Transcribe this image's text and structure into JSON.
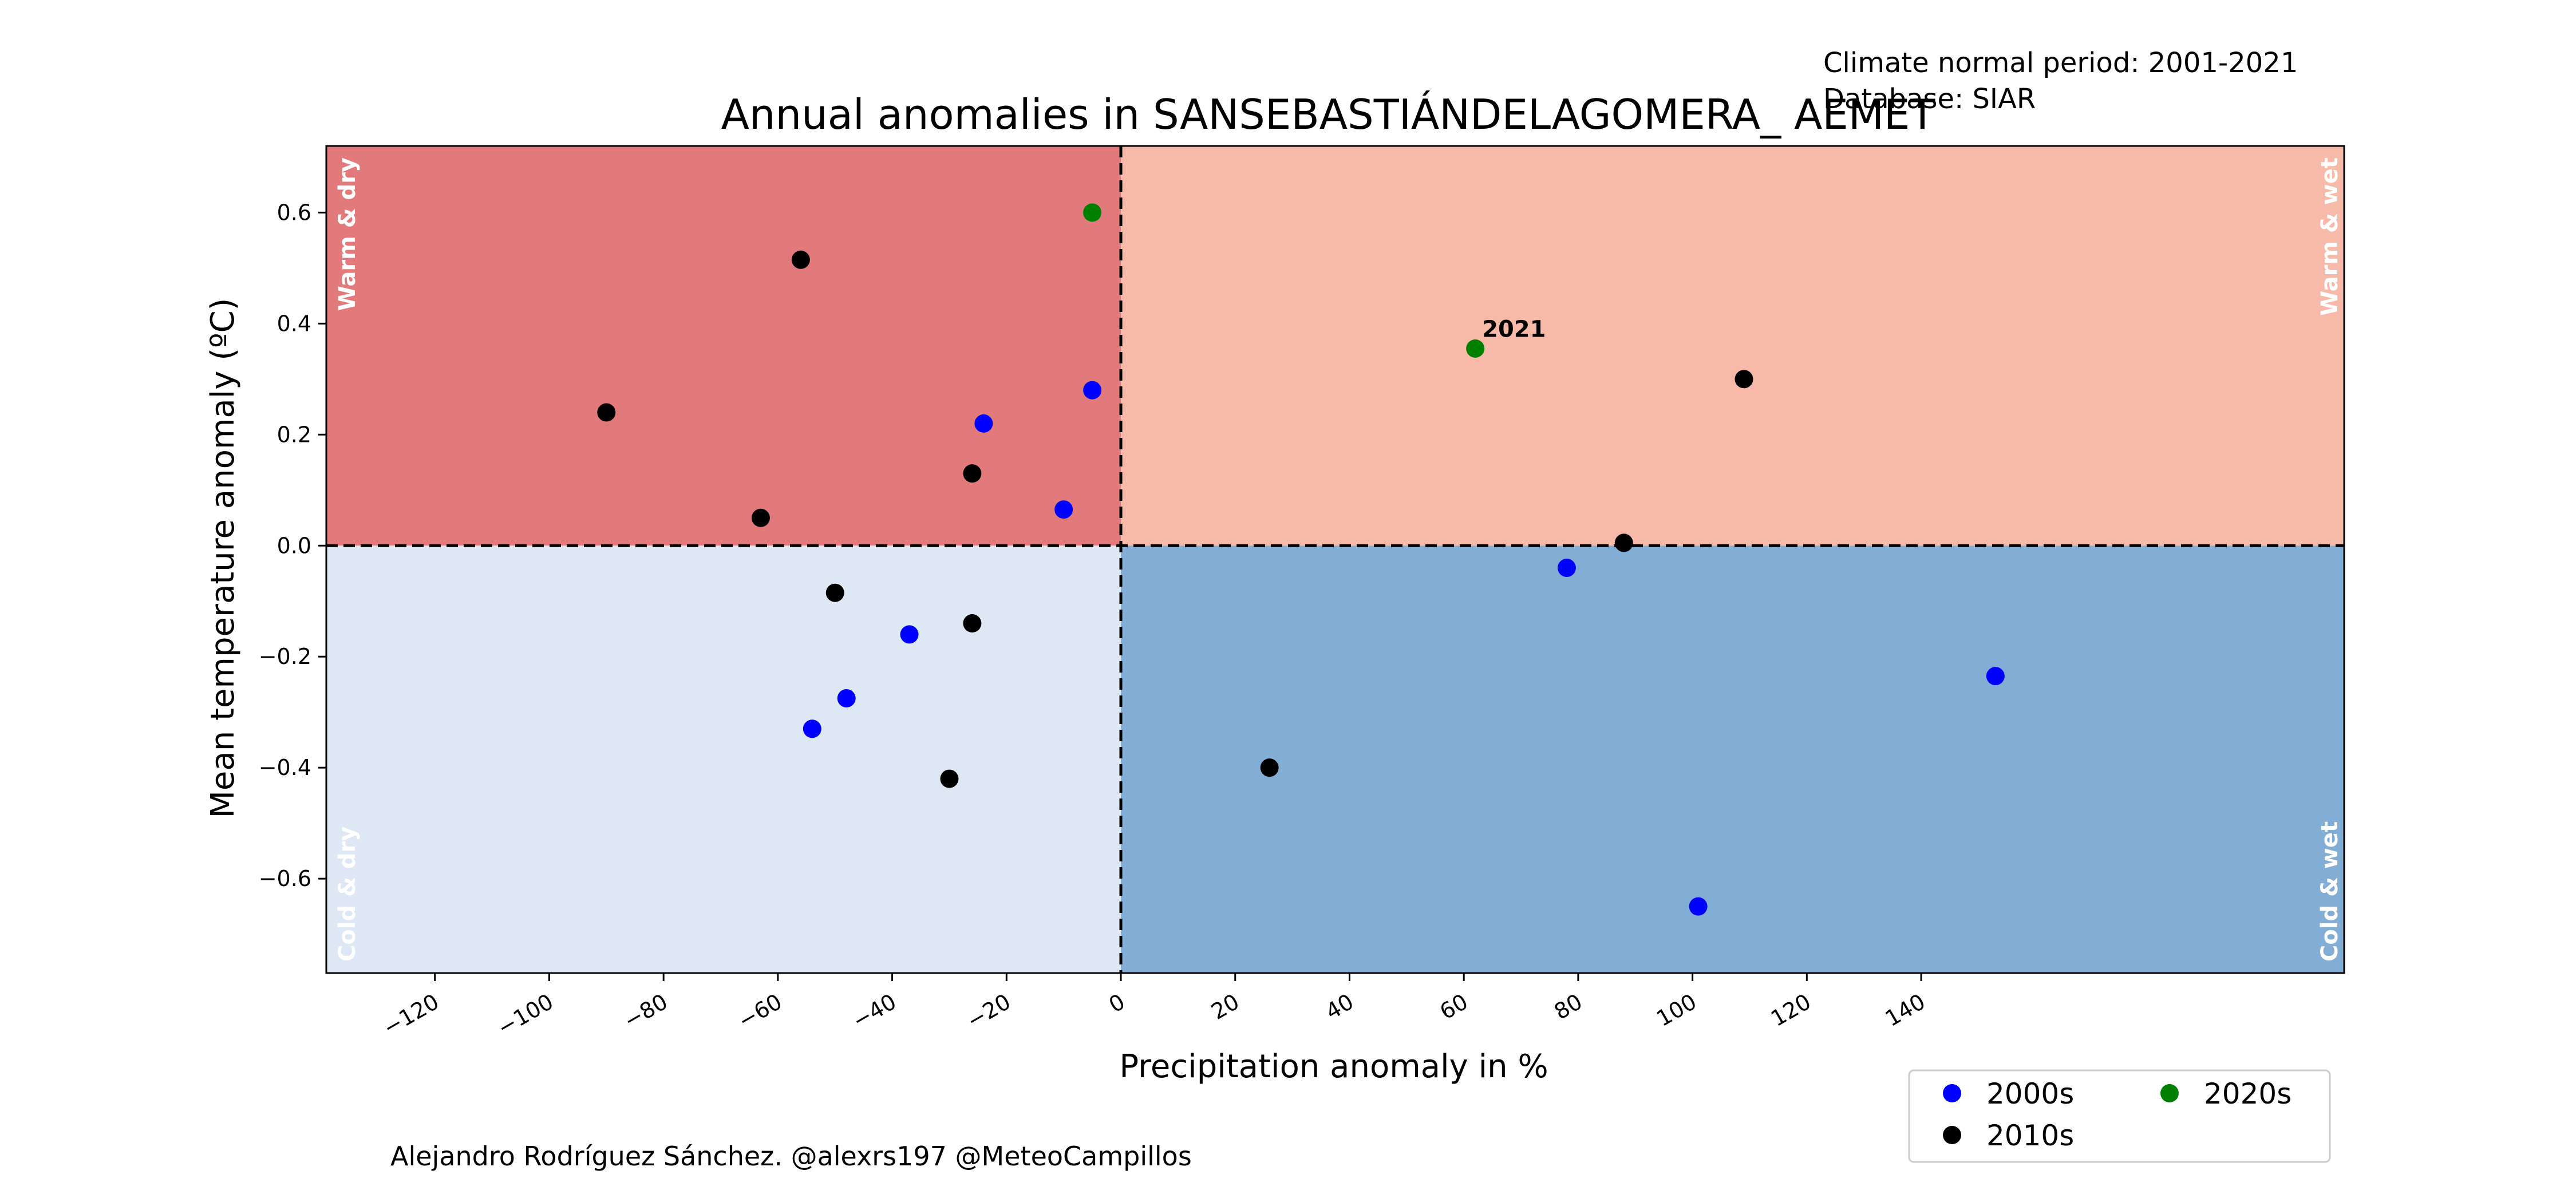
{
  "title": "Annual anomalies in SANSEBASTIÁNDELAGOMERA_ AEMET",
  "info": {
    "normal_period": "Climate normal period: 2001-2021",
    "database": "Database: SIAR"
  },
  "credit": "Alejandro Rodríguez Sánchez. @alexrs197 @MeteoCampillos",
  "colors": {
    "warm_dry": "#e27a7c",
    "warm_wet": "#f7baa8",
    "cold_dry": "#dde8f4",
    "cold_wet": "#82aed5",
    "2000s": "#0000ff",
    "2010s": "#000000",
    "2020s": "#008000"
  },
  "chart_data": {
    "type": "scatter",
    "xlabel": "Precipitation anomaly in %",
    "ylabel": "Mean temperature anomaly (ºC)",
    "xlim": [
      -139,
      214
    ],
    "ylim": [
      -0.77,
      0.72
    ],
    "xticks": [
      -120,
      -100,
      -80,
      -60,
      -40,
      -20,
      0,
      20,
      40,
      60,
      80,
      100,
      120,
      140
    ],
    "xtick_labels": [
      "−120",
      "−100",
      "−80",
      "−60",
      "−40",
      "−20",
      "0",
      "20",
      "40",
      "60",
      "80",
      "100",
      "120",
      "140"
    ],
    "yticks": [
      0.6,
      0.4,
      0.2,
      0.0,
      -0.2,
      -0.4,
      -0.6
    ],
    "ytick_labels": [
      "0.6",
      "0.4",
      "0.2",
      "0.0",
      "−0.2",
      "−0.4",
      "−0.6"
    ],
    "quadrant_labels": {
      "warm_dry": "Warm & dry",
      "warm_wet": "Warm & wet",
      "cold_dry": "Cold & dry",
      "cold_wet": "Cold & wet"
    },
    "legend": {
      "placement": "below-right",
      "entries": [
        "2000s",
        "2010s",
        "2020s"
      ]
    },
    "annotations": [
      {
        "text": "2021",
        "x": 62,
        "y": 0.38
      }
    ],
    "series": [
      {
        "name": "2000s",
        "points": [
          {
            "x": -5,
            "y": 0.28
          },
          {
            "x": -24,
            "y": 0.22
          },
          {
            "x": -10,
            "y": 0.065
          },
          {
            "x": -37,
            "y": -0.16
          },
          {
            "x": -48,
            "y": -0.275
          },
          {
            "x": -54,
            "y": -0.33
          },
          {
            "x": 78,
            "y": -0.04
          },
          {
            "x": 153,
            "y": -0.235
          },
          {
            "x": 101,
            "y": -0.65
          }
        ]
      },
      {
        "name": "2010s",
        "points": [
          {
            "x": -56,
            "y": 0.515
          },
          {
            "x": -90,
            "y": 0.24
          },
          {
            "x": -26,
            "y": 0.13
          },
          {
            "x": -63,
            "y": 0.05
          },
          {
            "x": -50,
            "y": -0.085
          },
          {
            "x": -26,
            "y": -0.14
          },
          {
            "x": -30,
            "y": -0.42
          },
          {
            "x": 26,
            "y": -0.4
          },
          {
            "x": 88,
            "y": 0.005
          },
          {
            "x": 109,
            "y": 0.3
          }
        ]
      },
      {
        "name": "2020s",
        "points": [
          {
            "x": -5,
            "y": 0.6
          },
          {
            "x": 62,
            "y": 0.355
          }
        ]
      }
    ]
  }
}
